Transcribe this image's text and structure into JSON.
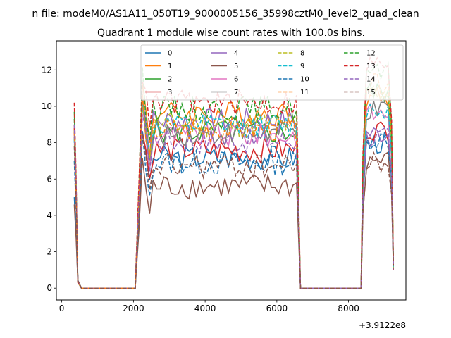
{
  "figure": {
    "suptitle": "n file: modeM0/AS1A11_050T19_9000005156_35998cztM0_level2_quad_clean",
    "title": "Quadrant 1 module wise count rates with 100.0s bins.",
    "x_offset_label": "+3.9122e8"
  },
  "chart_data": {
    "type": "line",
    "title": "Quadrant 1 module wise count rates with 100.0s bins.",
    "xlabel": "",
    "ylabel": "",
    "xlim": [
      -150,
      9600
    ],
    "ylim": [
      -0.65,
      13.6
    ],
    "x_offset": 391220000,
    "x_ticks": [
      0,
      2000,
      4000,
      6000,
      8000
    ],
    "y_ticks": [
      0,
      2,
      4,
      6,
      8,
      10,
      12
    ],
    "grid": false,
    "legend": {
      "placement": "top-center",
      "ncols": 4
    },
    "bin_width_s": 100,
    "segments": [
      {
        "start": 350,
        "end": 2050,
        "on_end": 2050
      },
      {
        "start": 2050,
        "end": 6660,
        "on_start": 2150,
        "on_end": 6560
      },
      {
        "start": 6660,
        "end": 9250,
        "on_start": 8350,
        "on_end": 9250
      }
    ],
    "series": [
      {
        "name": "0",
        "color": "#1f77b4",
        "dash": "solid",
        "first": 5.0,
        "level1": 7.2,
        "level2": 8.0
      },
      {
        "name": "1",
        "color": "#ff7f0e",
        "dash": "solid",
        "first": 9.0,
        "level1": 9.6,
        "level2": 10.5
      },
      {
        "name": "2",
        "color": "#2ca02c",
        "dash": "solid",
        "first": 9.7,
        "level1": 8.6,
        "level2": 10.8
      },
      {
        "name": "3",
        "color": "#d62728",
        "dash": "solid",
        "first": 8.8,
        "level1": 7.6,
        "level2": 8.7
      },
      {
        "name": "4",
        "color": "#9467bd",
        "dash": "solid",
        "first": 8.6,
        "level1": 9.2,
        "level2": 8.5
      },
      {
        "name": "5",
        "color": "#8c564b",
        "dash": "solid",
        "first": 4.6,
        "level1": 5.6,
        "level2": 7.0
      },
      {
        "name": "6",
        "color": "#e377c2",
        "dash": "solid",
        "first": 8.5,
        "level1": 8.4,
        "level2": 9.6
      },
      {
        "name": "7",
        "color": "#7f7f7f",
        "dash": "solid",
        "first": 8.3,
        "level1": 8.5,
        "level2": 9.7
      },
      {
        "name": "8",
        "color": "#bcbd22",
        "dash": "dashed",
        "first": 8.7,
        "level1": 9.0,
        "level2": 10.8
      },
      {
        "name": "9",
        "color": "#17becf",
        "dash": "dashed",
        "first": 8.2,
        "level1": 8.9,
        "level2": 9.8
      },
      {
        "name": "10",
        "color": "#1f77b4",
        "dash": "dashed",
        "first": 7.0,
        "level1": 6.9,
        "level2": 8.2
      },
      {
        "name": "11",
        "color": "#ff7f0e",
        "dash": "dashed",
        "first": 8.6,
        "level1": 8.7,
        "level2": 11.2
      },
      {
        "name": "12",
        "color": "#2ca02c",
        "dash": "dashed",
        "first": 9.3,
        "level1": 9.9,
        "level2": 11.8
      },
      {
        "name": "13",
        "color": "#d62728",
        "dash": "dashed",
        "first": 10.2,
        "level1": 10.2,
        "level2": 12.3
      },
      {
        "name": "14",
        "color": "#9467bd",
        "dash": "dashed",
        "first": 9.0,
        "level1": 8.1,
        "level2": 8.3
      },
      {
        "name": "15",
        "color": "#8c564b",
        "dash": "dashed",
        "first": 7.8,
        "level1": 6.7,
        "level2": 6.9
      }
    ]
  }
}
